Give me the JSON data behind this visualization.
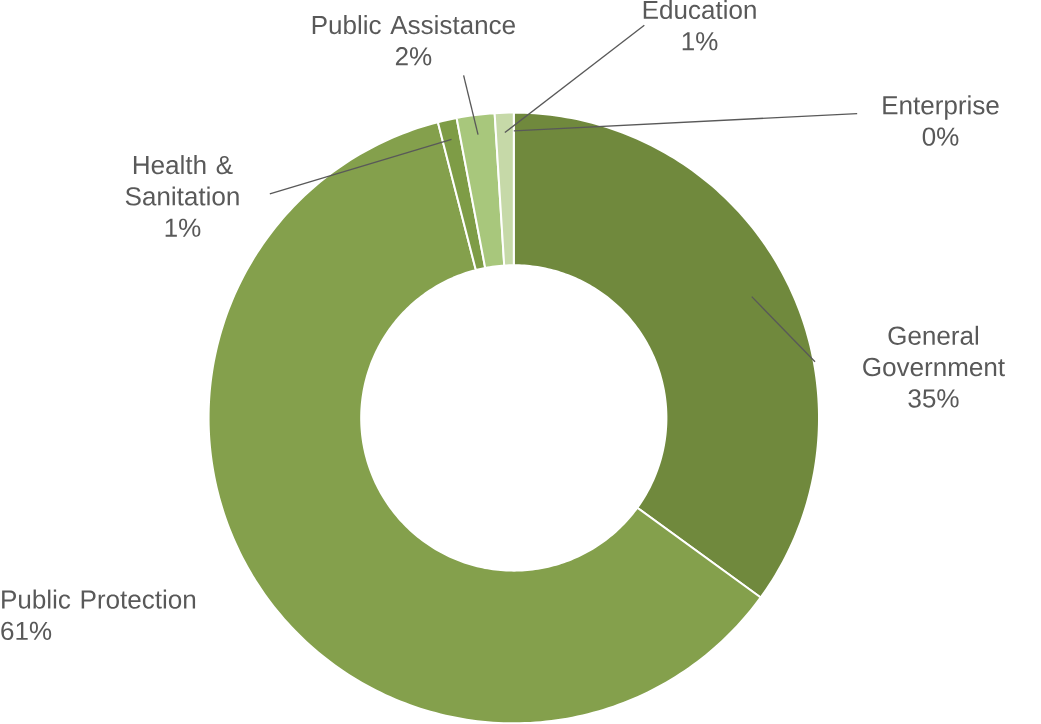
{
  "chart_data": {
    "type": "donut",
    "categories": [
      "General Government",
      "Public Protection",
      "Health & Sanitation",
      "Public Assistance",
      "Education",
      "Enterprise"
    ],
    "values": [
      35,
      61,
      1,
      2,
      1,
      0
    ],
    "value_labels": [
      "35%",
      "61%",
      "1%",
      "2%",
      "1%",
      "0%"
    ],
    "colors": [
      "#70893d",
      "#84a04c",
      "#7e9c46",
      "#a8c77c",
      "#c6d9a8",
      "#dbe7c9"
    ]
  }
}
